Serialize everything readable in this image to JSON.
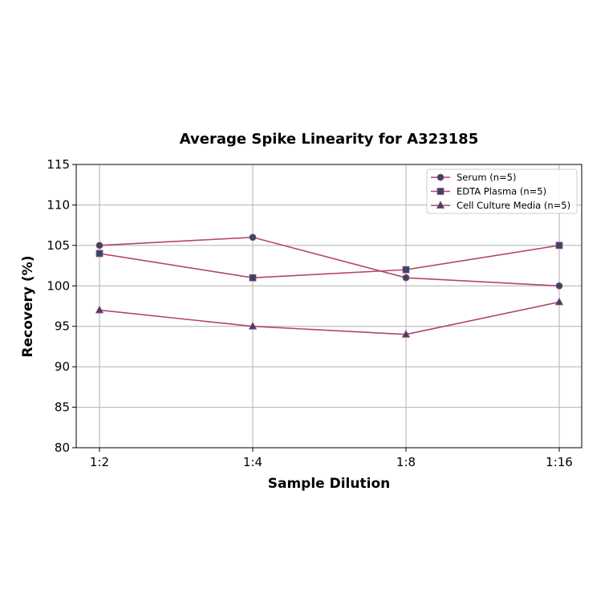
{
  "chart_data": {
    "type": "line",
    "title": "Average Spike Linearity for A323185",
    "xlabel": "Sample Dilution",
    "ylabel": "Recovery (%)",
    "categories": [
      "1:2",
      "1:4",
      "1:8",
      "1:16"
    ],
    "ylim": [
      80,
      115
    ],
    "yticks": [
      80,
      85,
      90,
      95,
      100,
      105,
      110,
      115
    ],
    "grid": true,
    "legend_position": "upper right",
    "line_color": "#b5446e",
    "marker_color": "#2e4a6b",
    "series": [
      {
        "name": "Serum (n=5)",
        "marker": "circle",
        "values": [
          105,
          106,
          101,
          100
        ]
      },
      {
        "name": "EDTA Plasma (n=5)",
        "marker": "square",
        "values": [
          104,
          101,
          102,
          105
        ]
      },
      {
        "name": "Cell Culture Media (n=5)",
        "marker": "triangle",
        "values": [
          97,
          95,
          94,
          98
        ]
      }
    ]
  }
}
